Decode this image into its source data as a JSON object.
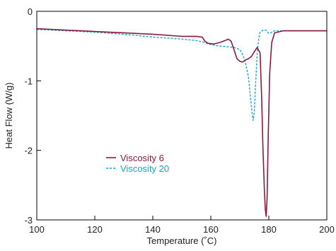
{
  "chart_data": {
    "type": "line",
    "xlabel": "Temperature (˚C)",
    "ylabel": "Heat Flow (W/g)",
    "xlim": [
      100,
      200
    ],
    "ylim": [
      -3,
      0
    ],
    "xticks": [
      "100",
      "120",
      "140",
      "160",
      "180",
      "200"
    ],
    "yticks": [
      "0",
      "-1",
      "-2",
      "-3"
    ],
    "grid": false,
    "legend_position": "center-left",
    "series": [
      {
        "name": "Viscosity 6",
        "color": "#8b1a3c",
        "line_style": "solid",
        "points": [
          [
            100,
            -0.25
          ],
          [
            110,
            -0.27
          ],
          [
            120,
            -0.29
          ],
          [
            130,
            -0.31
          ],
          [
            140,
            -0.33
          ],
          [
            150,
            -0.36
          ],
          [
            155,
            -0.36
          ],
          [
            157,
            -0.37
          ],
          [
            158,
            -0.43
          ],
          [
            159,
            -0.46
          ],
          [
            161,
            -0.47
          ],
          [
            163,
            -0.45
          ],
          [
            165,
            -0.42
          ],
          [
            166,
            -0.4
          ],
          [
            167,
            -0.43
          ],
          [
            168,
            -0.55
          ],
          [
            169,
            -0.68
          ],
          [
            170,
            -0.72
          ],
          [
            171,
            -0.73
          ],
          [
            172,
            -0.7
          ],
          [
            173,
            -0.68
          ],
          [
            174,
            -0.65
          ],
          [
            175,
            -0.58
          ],
          [
            176,
            -0.52
          ],
          [
            177,
            -0.6
          ],
          [
            177.5,
            -1.2
          ],
          [
            178,
            -2.0
          ],
          [
            178.5,
            -2.6
          ],
          [
            178.8,
            -2.85
          ],
          [
            179.1,
            -2.95
          ],
          [
            179.4,
            -2.7
          ],
          [
            179.8,
            -1.8
          ],
          [
            180.3,
            -0.9
          ],
          [
            181,
            -0.45
          ],
          [
            182,
            -0.31
          ],
          [
            185,
            -0.28
          ],
          [
            190,
            -0.28
          ],
          [
            200,
            -0.28
          ]
        ]
      },
      {
        "name": "Viscosity 20",
        "color": "#1aa3cc",
        "line_style": "dotted",
        "points": [
          [
            100,
            -0.26
          ],
          [
            110,
            -0.28
          ],
          [
            120,
            -0.3
          ],
          [
            130,
            -0.33
          ],
          [
            140,
            -0.37
          ],
          [
            150,
            -0.4
          ],
          [
            155,
            -0.42
          ],
          [
            158,
            -0.45
          ],
          [
            160,
            -0.48
          ],
          [
            163,
            -0.5
          ],
          [
            166,
            -0.51
          ],
          [
            168,
            -0.52
          ],
          [
            170,
            -0.55
          ],
          [
            171,
            -0.62
          ],
          [
            172,
            -0.75
          ],
          [
            173,
            -0.95
          ],
          [
            173.6,
            -1.2
          ],
          [
            174.2,
            -1.45
          ],
          [
            174.6,
            -1.57
          ],
          [
            175,
            -1.45
          ],
          [
            175.5,
            -1.0
          ],
          [
            176,
            -0.6
          ],
          [
            176.5,
            -0.4
          ],
          [
            177,
            -0.3
          ],
          [
            178,
            -0.27
          ],
          [
            179,
            -0.27
          ],
          [
            180,
            -0.32
          ],
          [
            181,
            -0.3
          ],
          [
            182,
            -0.28
          ],
          [
            185,
            -0.28
          ],
          [
            190,
            -0.28
          ],
          [
            200,
            -0.28
          ]
        ]
      }
    ]
  }
}
